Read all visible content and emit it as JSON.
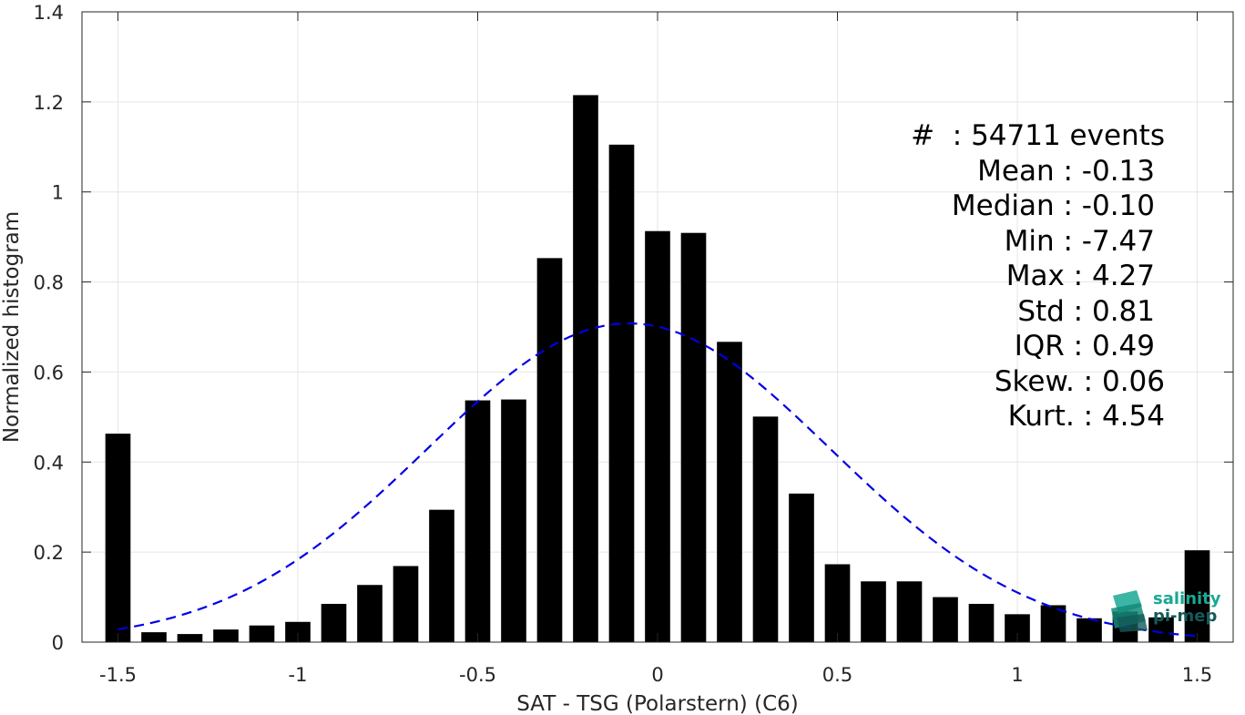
{
  "chart_data": {
    "type": "bar",
    "xlabel": "SAT - TSG (Polarstern) (C6)",
    "ylabel": "Normalized histogram",
    "xlim": [
      -1.6,
      1.6
    ],
    "ylim": [
      0,
      1.4
    ],
    "xticks": [
      -1.5,
      -1,
      -0.5,
      0,
      0.5,
      1,
      1.5
    ],
    "xtick_labels": [
      "-1.5",
      "-1",
      "-0.5",
      "0",
      "0.5",
      "1",
      "1.5"
    ],
    "yticks": [
      0,
      0.2,
      0.4,
      0.6,
      0.8,
      1,
      1.2,
      1.4
    ],
    "ytick_labels": [
      "0",
      "0.2",
      "0.4",
      "0.6",
      "0.8",
      "1",
      "1.2",
      "1.4"
    ],
    "grid": true,
    "bar_width": 0.07,
    "series": [
      {
        "type": "bar",
        "color": "#000000",
        "x": [
          -1.5,
          -1.4,
          -1.3,
          -1.2,
          -1.1,
          -1.0,
          -0.9,
          -0.8,
          -0.7,
          -0.6,
          -0.5,
          -0.4,
          -0.3,
          -0.2,
          -0.1,
          0.0,
          0.1,
          0.2,
          0.3,
          0.4,
          0.5,
          0.6,
          0.7,
          0.8,
          0.9,
          1.0,
          1.1,
          1.2,
          1.3,
          1.4,
          1.5
        ],
        "values": [
          0.463,
          0.022,
          0.018,
          0.028,
          0.037,
          0.045,
          0.085,
          0.127,
          0.169,
          0.294,
          0.537,
          0.539,
          0.853,
          1.215,
          1.105,
          0.913,
          0.909,
          0.667,
          0.501,
          0.33,
          0.173,
          0.135,
          0.135,
          0.1,
          0.085,
          0.062,
          0.082,
          0.053,
          0.068,
          0.055,
          0.204
        ]
      },
      {
        "type": "line",
        "style": "dashed",
        "color": "#0000e6",
        "gaussian": {
          "mean": -0.08,
          "std": 0.56,
          "peak": 0.708
        },
        "x_range": [
          -1.5,
          1.5
        ]
      }
    ],
    "stats": [
      {
        "text": "#  : 54711 events",
        "indent": 0
      },
      {
        "text": "Mean : -0.13",
        "indent": 1
      },
      {
        "text": "Median : -0.10",
        "indent": 1
      },
      {
        "text": "Min : -7.47",
        "indent": 1
      },
      {
        "text": "Max : 4.27",
        "indent": 1
      },
      {
        "text": "Std : 0.81",
        "indent": 1
      },
      {
        "text": "IQR : 0.49",
        "indent": 1
      },
      {
        "text": "Skew. : 0.06",
        "indent": 0
      },
      {
        "text": "Kurt. : 4.54",
        "indent": 0
      }
    ]
  },
  "logo": {
    "line1": "salinity",
    "line2": "pi-mep"
  }
}
